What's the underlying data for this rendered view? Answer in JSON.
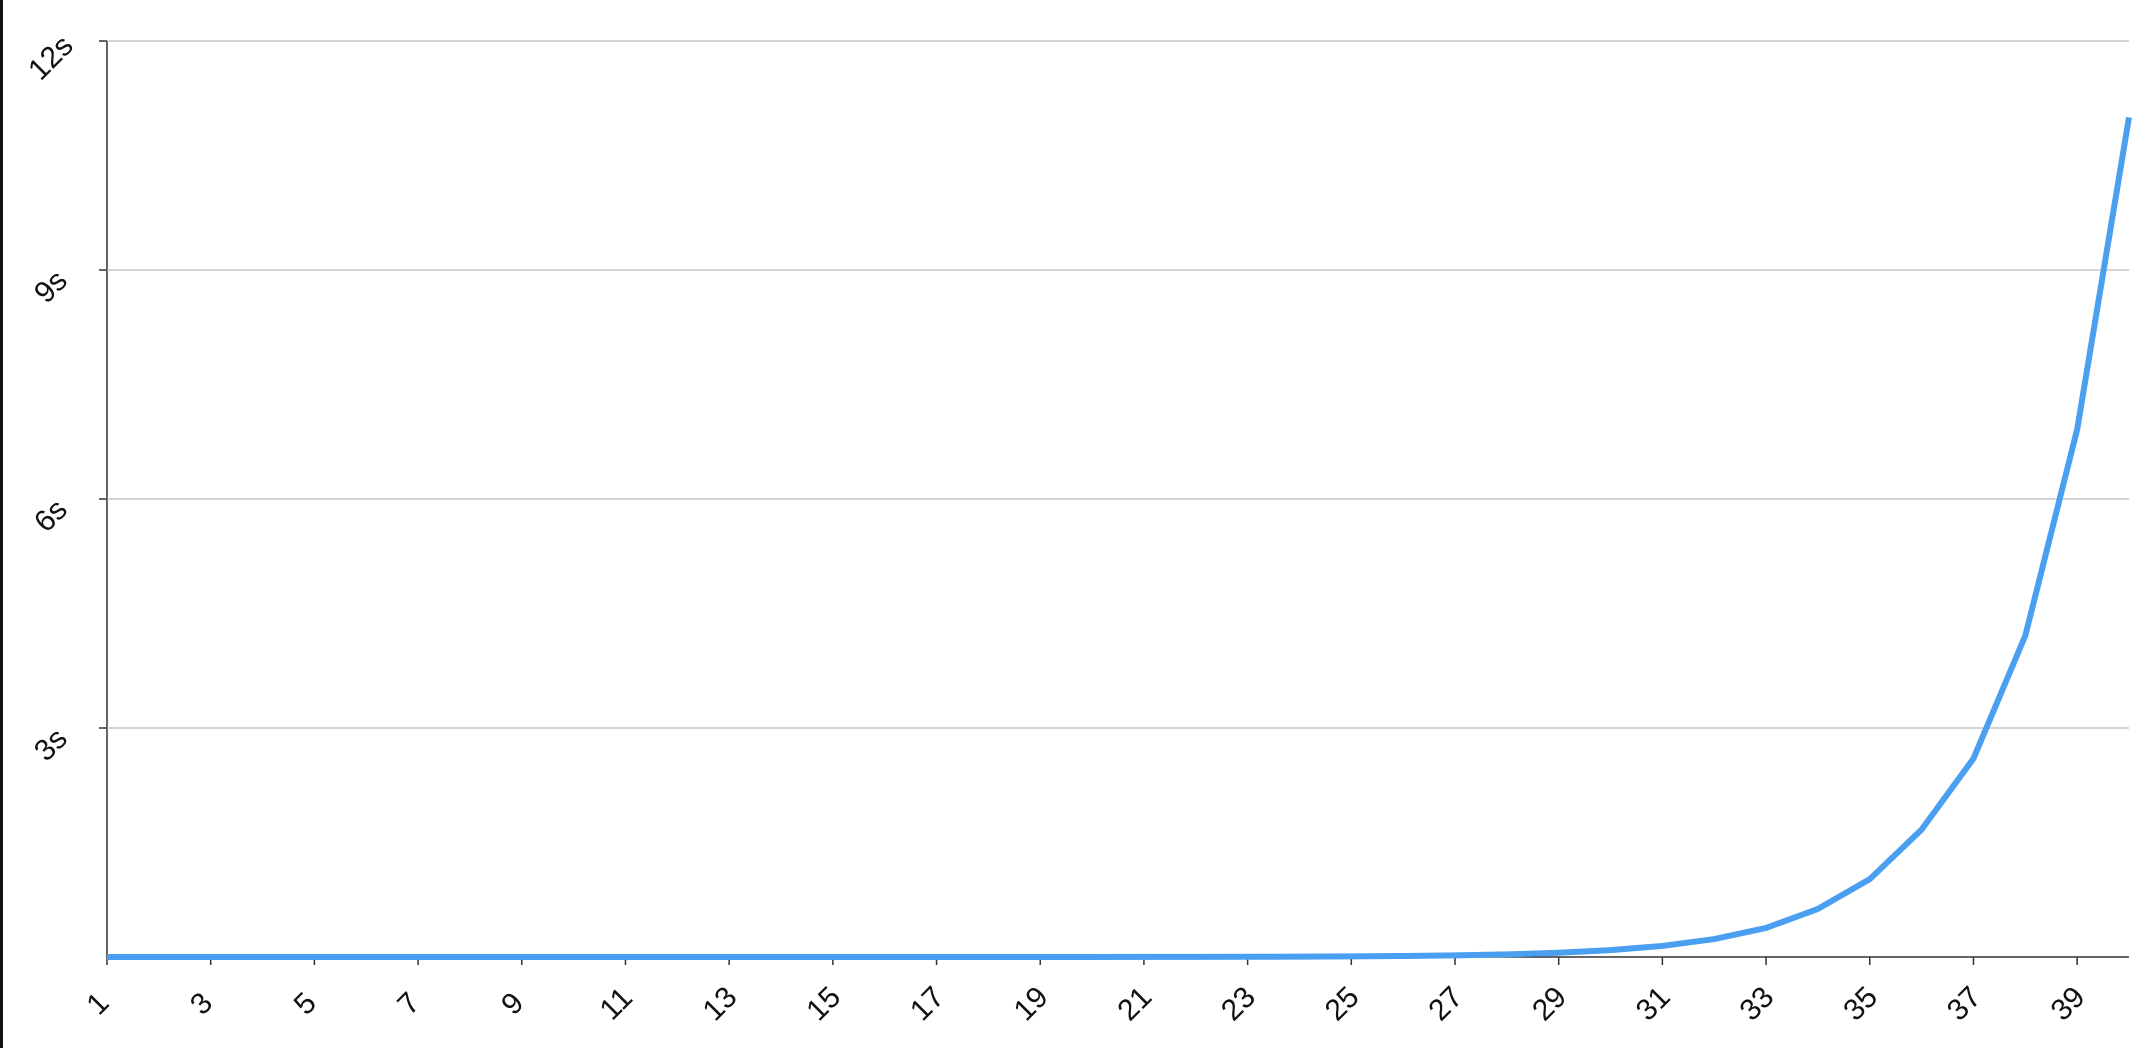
{
  "chart_data": {
    "type": "line",
    "x": [
      1,
      2,
      3,
      4,
      5,
      6,
      7,
      8,
      9,
      10,
      11,
      12,
      13,
      14,
      15,
      16,
      17,
      18,
      19,
      20,
      21,
      22,
      23,
      24,
      25,
      26,
      27,
      28,
      29,
      30,
      31,
      32,
      33,
      34,
      35,
      36,
      37,
      38,
      39,
      40
    ],
    "series": [
      {
        "color": "#4a9ff0",
        "values": [
          0,
          0,
          0,
          0,
          0,
          0,
          0,
          0,
          0,
          0,
          0,
          0,
          0,
          0,
          0,
          0,
          0,
          0,
          0,
          0,
          0.001,
          0.002,
          0.003,
          0.005,
          0.008,
          0.013,
          0.021,
          0.034,
          0.055,
          0.09,
          0.145,
          0.235,
          0.38,
          0.63,
          1.02,
          1.67,
          2.6,
          4.21,
          6.91,
          11.0
        ]
      }
    ],
    "xlim": [
      1,
      40
    ],
    "xticks": [
      1,
      3,
      5,
      7,
      9,
      11,
      13,
      15,
      17,
      19,
      21,
      23,
      25,
      27,
      29,
      31,
      33,
      35,
      37,
      39
    ],
    "ylim": [
      0,
      12
    ],
    "yticks": [
      {
        "value": 3,
        "label": "3s"
      },
      {
        "value": 6,
        "label": "6s"
      },
      {
        "value": 9,
        "label": "9s"
      },
      {
        "value": 12,
        "label": "12s"
      }
    ],
    "grid": true
  }
}
